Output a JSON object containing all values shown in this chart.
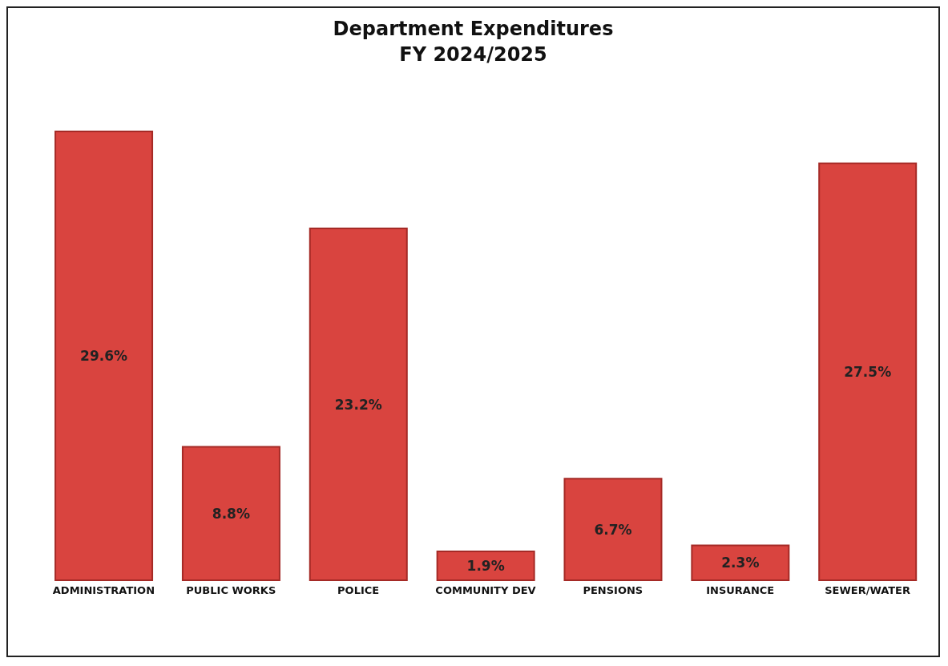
{
  "chart_data": {
    "type": "bar",
    "title": "Department Expenditures",
    "subtitle": "FY 2024/2025",
    "categories": [
      "ADMINISTRATION",
      "PUBLIC WORKS",
      "POLICE",
      "COMMUNITY DEV",
      "PENSIONS",
      "INSURANCE",
      "SEWER/WATER"
    ],
    "values": [
      29.6,
      8.8,
      23.2,
      1.9,
      6.7,
      2.3,
      27.5
    ],
    "value_labels": [
      "29.6%",
      "8.8%",
      "23.2%",
      "1.9%",
      "6.7%",
      "2.3%",
      "27.5%"
    ],
    "color": "#d9443f"
  }
}
